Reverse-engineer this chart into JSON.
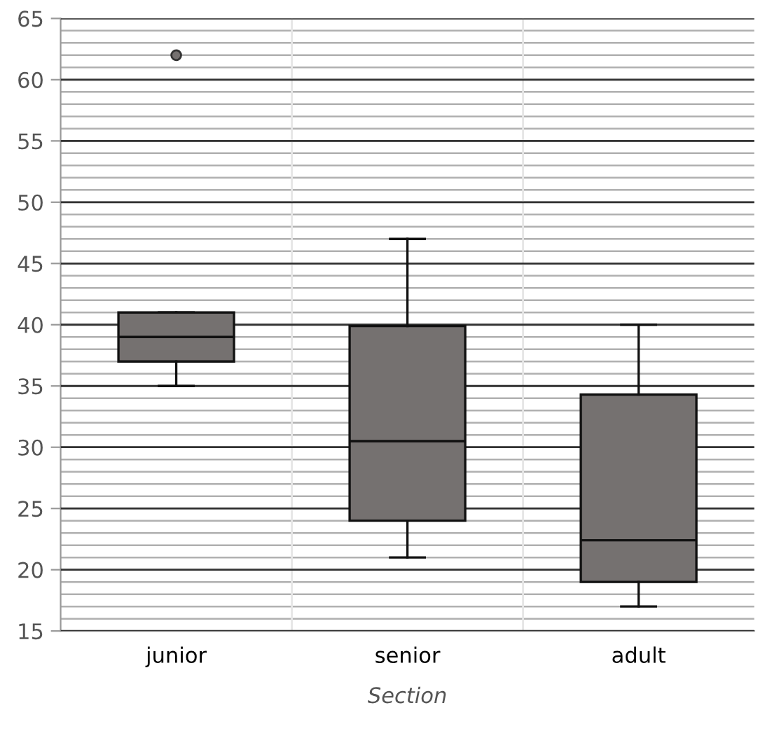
{
  "chart_data": {
    "type": "box",
    "xlabel": "Section",
    "categories": [
      "junior",
      "senior",
      "adult"
    ],
    "color": "#757170",
    "boxes": [
      {
        "low": 35,
        "q1": 37,
        "median": 39,
        "q3": 41,
        "high": 41,
        "outliers": [
          62
        ]
      },
      {
        "low": 21,
        "q1": 24,
        "median": 30.5,
        "q3": 39.9,
        "high": 47
      },
      {
        "low": 17,
        "q1": 19,
        "median": 22.4,
        "q3": 34.3,
        "high": 40
      }
    ],
    "ylim": [
      15,
      65
    ],
    "yticks": [
      15,
      20,
      25,
      30,
      35,
      40,
      45,
      50,
      55,
      60,
      65
    ],
    "grid": true
  }
}
